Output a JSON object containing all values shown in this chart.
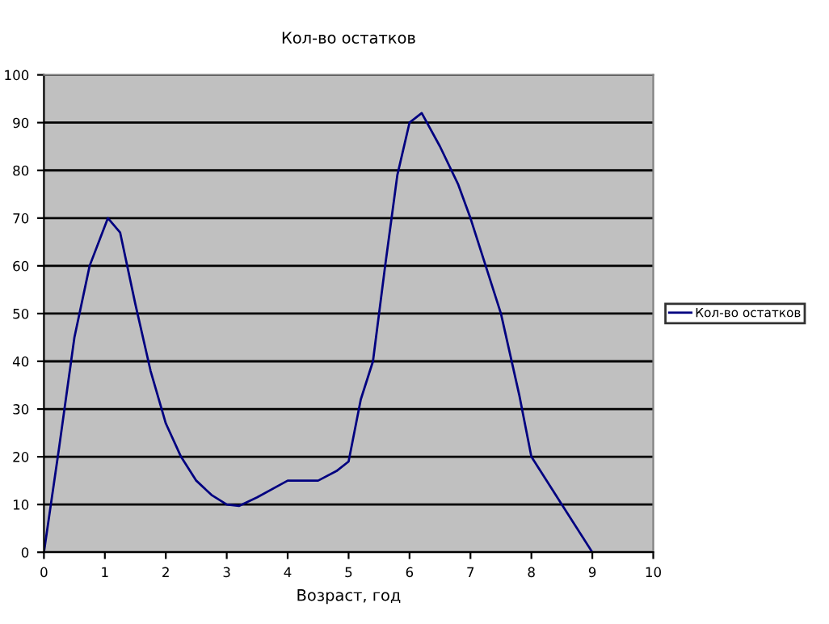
{
  "chart_data": {
    "type": "line",
    "title": "Кол-во остатков",
    "xlabel": "Возраст, год",
    "series": [
      {
        "name": "Кол-во остатков",
        "color": "#000080",
        "x": [
          0,
          0.25,
          0.5,
          0.75,
          1.05,
          1.25,
          1.5,
          1.75,
          2,
          2.25,
          2.5,
          2.75,
          3,
          3.2,
          3.5,
          4,
          4.5,
          4.8,
          5,
          5.2,
          5.4,
          5.6,
          5.8,
          6,
          6.2,
          6.5,
          6.8,
          7,
          7.5,
          7.8,
          8,
          8.5,
          9
        ],
        "values": [
          0,
          22,
          45,
          60,
          70,
          67,
          52,
          38,
          27,
          20,
          15,
          12,
          10,
          9.7,
          11.5,
          15,
          15,
          17,
          19,
          32,
          40,
          60,
          79,
          90,
          92,
          85,
          77,
          70,
          50,
          33,
          20,
          10,
          0
        ]
      }
    ],
    "xlim": [
      0,
      10
    ],
    "xticks": [
      0,
      1,
      2,
      3,
      4,
      5,
      6,
      7,
      8,
      9,
      10
    ],
    "ylim": [
      0,
      100
    ],
    "yticks": [
      0,
      10,
      20,
      30,
      40,
      50,
      60,
      70,
      80,
      90,
      100
    ],
    "grid": "y",
    "legend": "right",
    "marker": "none",
    "line_style": "solid"
  }
}
